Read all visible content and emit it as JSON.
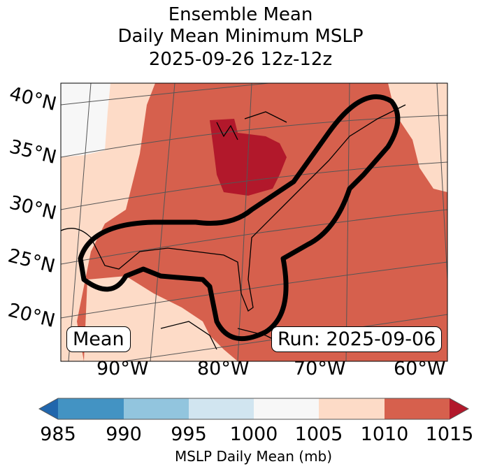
{
  "title": {
    "line1": "Ensemble Mean",
    "line2": "Daily Mean Minimum MSLP",
    "line3": "2025-09-26 12z-12z"
  },
  "map": {
    "lat_labels": [
      "40°N",
      "35°N",
      "30°N",
      "25°N",
      "20°N"
    ],
    "lon_labels": [
      "90°W",
      "80°W",
      "70°W",
      "60°W"
    ],
    "mean_label": "Mean",
    "run_label": "Run: 2025-09-06",
    "contour_description": "thick black outline enclosing Gulf of Mexico and US East Coast",
    "region_colors": {
      "1000-1005": "#f7f7f7",
      "1005-1010": "#fddbc7",
      "1010-1015": "#d6604d",
      ">1015": "#b2182b"
    }
  },
  "colorbar": {
    "label": "MSLP Daily Mean (mb)",
    "ticks": [
      "985",
      "990",
      "995",
      "1000",
      "1005",
      "1010",
      "1015"
    ],
    "bins": [
      {
        "range": "<985",
        "color": "#2166ac"
      },
      {
        "range": "985-990",
        "color": "#4393c3"
      },
      {
        "range": "990-995",
        "color": "#92c5de"
      },
      {
        "range": "995-1000",
        "color": "#d1e5f0"
      },
      {
        "range": "1000-1005",
        "color": "#f7f7f7"
      },
      {
        "range": "1005-1010",
        "color": "#fddbc7"
      },
      {
        "range": "1010-1015",
        "color": "#d6604d"
      },
      {
        "range": ">1015",
        "color": "#b2182b"
      }
    ]
  }
}
